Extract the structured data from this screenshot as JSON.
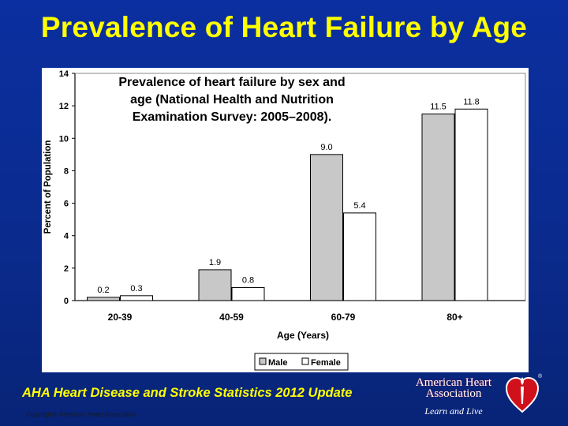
{
  "slide": {
    "title": "Prevalence of Heart Failure by Age",
    "footer": "AHA Heart Disease and Stroke Statistics 2012 Update",
    "copyright": "Copyright© American Heart Association"
  },
  "logo": {
    "name_line1": "American Heart",
    "name_line2": "Association",
    "tagline": "Learn and Live",
    "icon": "heart-torch-icon",
    "registered": "®"
  },
  "colors": {
    "background": "#0a2a8c",
    "title": "#ffff00",
    "male_bar": "#c8c8c8",
    "female_bar": "#ffffff"
  },
  "chart_data": {
    "type": "bar",
    "title_lines": [
      "Prevalence of heart failure by sex and",
      "age (National Health and Nutrition",
      "Examination Survey: 2005–2008)."
    ],
    "xlabel": "Age (Years)",
    "ylabel": "Percent of Population",
    "ylim": [
      0,
      14
    ],
    "yticks": [
      0,
      2,
      4,
      6,
      8,
      10,
      12,
      14
    ],
    "categories": [
      "20-39",
      "40-59",
      "60-79",
      "80+"
    ],
    "series": [
      {
        "name": "Male",
        "values": [
          0.2,
          1.9,
          9.0,
          11.5
        ],
        "labels": [
          "0.2",
          "1.9",
          "9.0",
          "11.5"
        ]
      },
      {
        "name": "Female",
        "values": [
          0.3,
          0.8,
          5.4,
          11.8
        ],
        "labels": [
          "0.3",
          "0.8",
          "5.4",
          "11.8"
        ]
      }
    ],
    "legend_position": "bottom-right",
    "grid": false
  }
}
